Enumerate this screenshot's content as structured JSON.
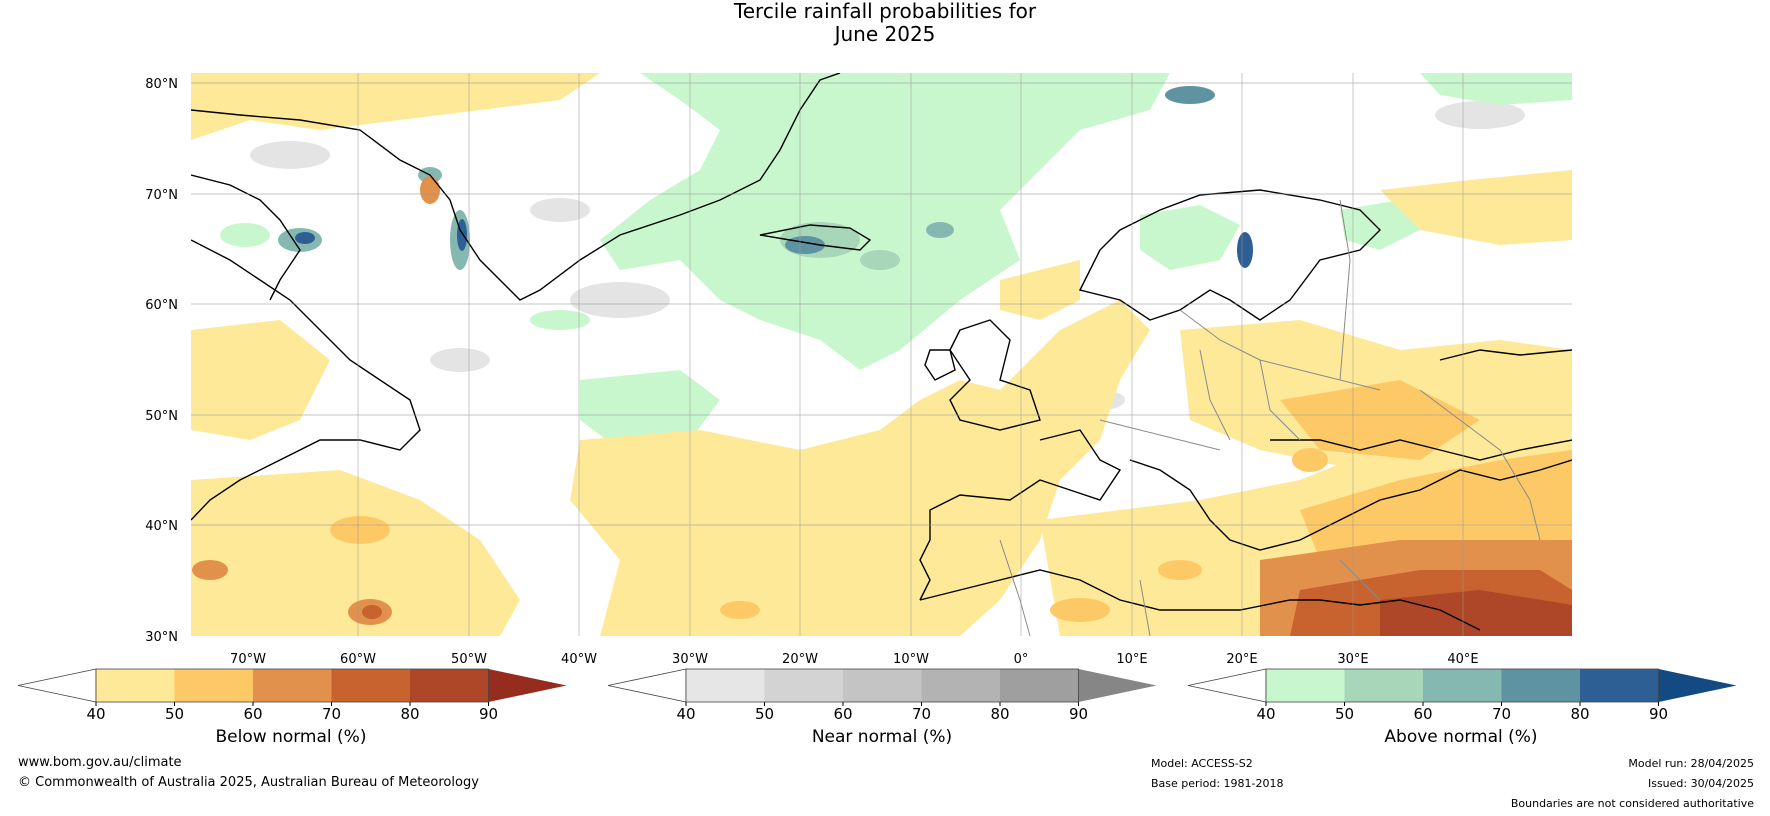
{
  "title": {
    "line1": "Tercile rainfall probabilities for",
    "line2": "June 2025"
  },
  "map": {
    "lat_labels": [
      "80°N",
      "70°N",
      "60°N",
      "50°N",
      "40°N",
      "30°N"
    ],
    "lon_labels": [
      "70°W",
      "60°W",
      "50°W",
      "40°W",
      "30°W",
      "20°W",
      "10°W",
      "0°",
      "10°E",
      "20°E",
      "30°E",
      "40°E"
    ],
    "colors": {
      "below": [
        "#fee999",
        "#fdc966",
        "#e1914b",
        "#c8622e",
        "#ad4727",
        "#962c1d"
      ],
      "near": [
        "#e6e6e6",
        "#d3d3d3",
        "#c4c4c4",
        "#b3b3b3",
        "#9f9f9f",
        "#868686"
      ],
      "above": [
        "#c8f7cd",
        "#a7d6b8",
        "#84b8b1",
        "#5e94a1",
        "#2e5f94",
        "#144a82"
      ]
    }
  },
  "colorbars": [
    {
      "label": "Below normal (%)",
      "ticks": [
        "40",
        "50",
        "60",
        "70",
        "80",
        "90"
      ]
    },
    {
      "label": "Near normal (%)",
      "ticks": [
        "40",
        "50",
        "60",
        "70",
        "80",
        "90"
      ]
    },
    {
      "label": "Above normal (%)",
      "ticks": [
        "40",
        "50",
        "60",
        "70",
        "80",
        "90"
      ]
    }
  ],
  "footer": {
    "website": "www.bom.gov.au/climate",
    "copyright": "© Commonwealth of Australia 2025, Australian Bureau of Meteorology",
    "model": "Model: ACCESS-S2",
    "base_period": "Base period: 1981-2018",
    "model_run": "Model run: 28/04/2025",
    "issued": "Issued: 30/04/2025",
    "disclaimer": "Boundaries are not considered authoritative"
  }
}
